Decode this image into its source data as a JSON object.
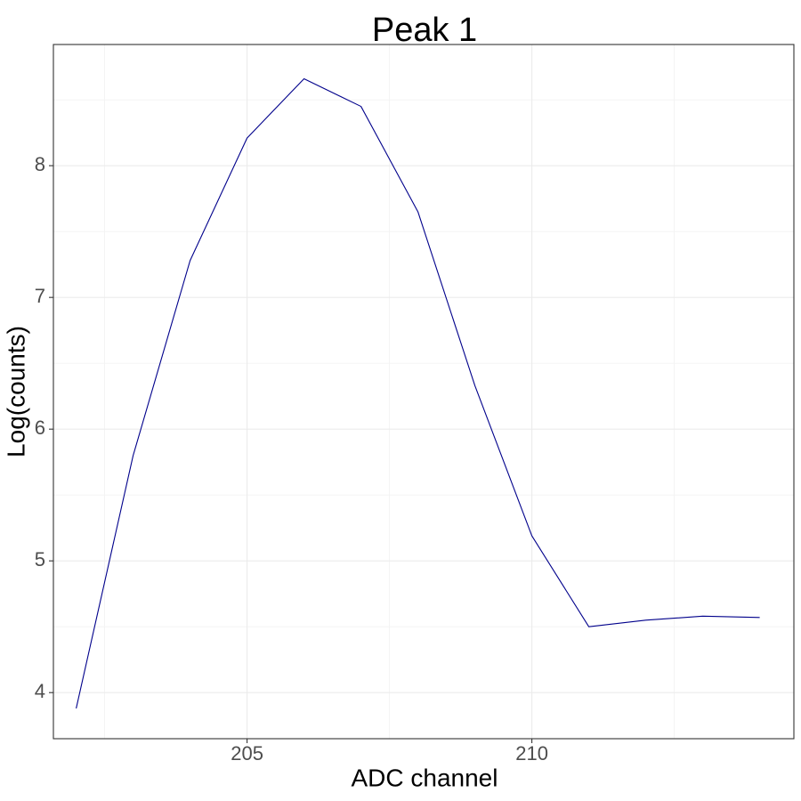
{
  "chart_data": {
    "type": "line",
    "title": "Peak 1",
    "xlabel": "ADC channel",
    "ylabel": "Log(counts)",
    "x": [
      202,
      203,
      204,
      205,
      206,
      207,
      208,
      209,
      210,
      211,
      212,
      213,
      214
    ],
    "series": [
      {
        "values": [
          3.88,
          5.8,
          7.28,
          8.21,
          8.66,
          8.45,
          7.65,
          6.33,
          5.19,
          4.5,
          4.55,
          4.58,
          4.57
        ],
        "color": "#00008b"
      }
    ],
    "xlim": [
      201.6,
      214.6
    ],
    "ylim": [
      3.65,
      8.92
    ],
    "xticks": [
      205,
      210
    ],
    "yticks": [
      4,
      5,
      6,
      7,
      8
    ],
    "xtick_labels": [
      "205",
      "210"
    ],
    "ytick_labels": [
      "4",
      "5",
      "6",
      "7",
      "8"
    ],
    "grid": true,
    "theme": "bw"
  }
}
